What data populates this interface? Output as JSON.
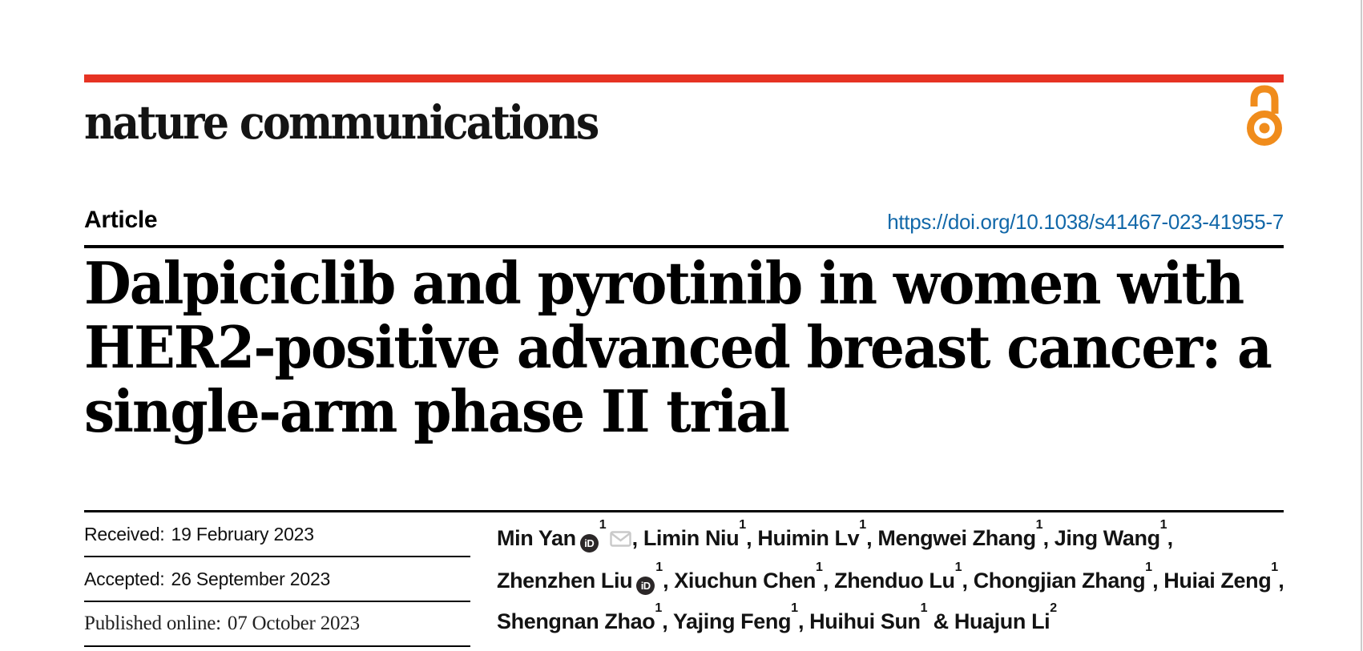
{
  "journal": "nature communications",
  "article_type": "Article",
  "doi": "https://doi.org/10.1038/s41467-023-41955-7",
  "title_lines": [
    "Dalpiciclib and pyrotinib in women with",
    "HER2-positive advanced breast cancer: a",
    "single-arm phase II trial"
  ],
  "dates": [
    {
      "label": "Received:",
      "value": "19 February 2023"
    },
    {
      "label": "Accepted:",
      "value": "26 September 2023"
    },
    {
      "label": "Published online:",
      "value": "07 October 2023"
    }
  ],
  "authors": [
    {
      "name": "Min Yan",
      "orcid": true,
      "sup": "1",
      "mail": true,
      "sep": ", "
    },
    {
      "name": "Limin Niu",
      "sup": "1",
      "sep": ", "
    },
    {
      "name": "Huimin Lv",
      "sup": "1",
      "sep": ", "
    },
    {
      "name": "Mengwei Zhang",
      "sup": "1",
      "sep": ", "
    },
    {
      "name": "Jing Wang",
      "sup": "1",
      "sep": ",",
      "br": true
    },
    {
      "name": "Zhenzhen Liu",
      "orcid": true,
      "sup": "1",
      "sep": ", "
    },
    {
      "name": "Xiuchun Chen",
      "sup": "1",
      "sep": ", "
    },
    {
      "name": "Zhenduo Lu",
      "sup": "1",
      "sep": ", "
    },
    {
      "name": "Chongjian Zhang",
      "sup": "1",
      "sep": ", "
    },
    {
      "name": "Huiai Zeng",
      "sup": "1",
      "sep": ",",
      "br": true
    },
    {
      "name": "Shengnan Zhao",
      "sup": "1",
      "sep": ", "
    },
    {
      "name": "Yajing Feng",
      "sup": "1",
      "sep": ", "
    },
    {
      "name": "Huihui Sun",
      "sup": "1",
      "sep": " & "
    },
    {
      "name": "Huajun Li",
      "sup": "2",
      "sep": ""
    }
  ],
  "icons": {
    "orcid_label": "iD",
    "open_access": "open-padlock",
    "email": "envelope"
  },
  "colors": {
    "brand_red": "#e63323",
    "link_blue": "#1268a9",
    "open_access_orange": "#f08c1c",
    "icon_gray": "#c9c9c9",
    "border_gray": "#cccccc"
  }
}
